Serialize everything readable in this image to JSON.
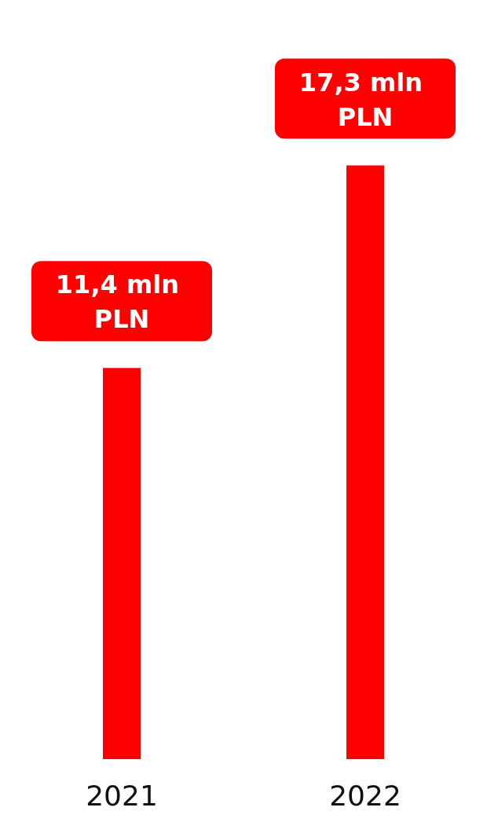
{
  "chart_data": {
    "type": "bar",
    "categories": [
      "2021",
      "2022"
    ],
    "values": [
      11.4,
      17.3
    ],
    "color": "#ff0000",
    "value_labels": [
      "11,4 mln PLN",
      "17,3 mln PLN"
    ]
  }
}
